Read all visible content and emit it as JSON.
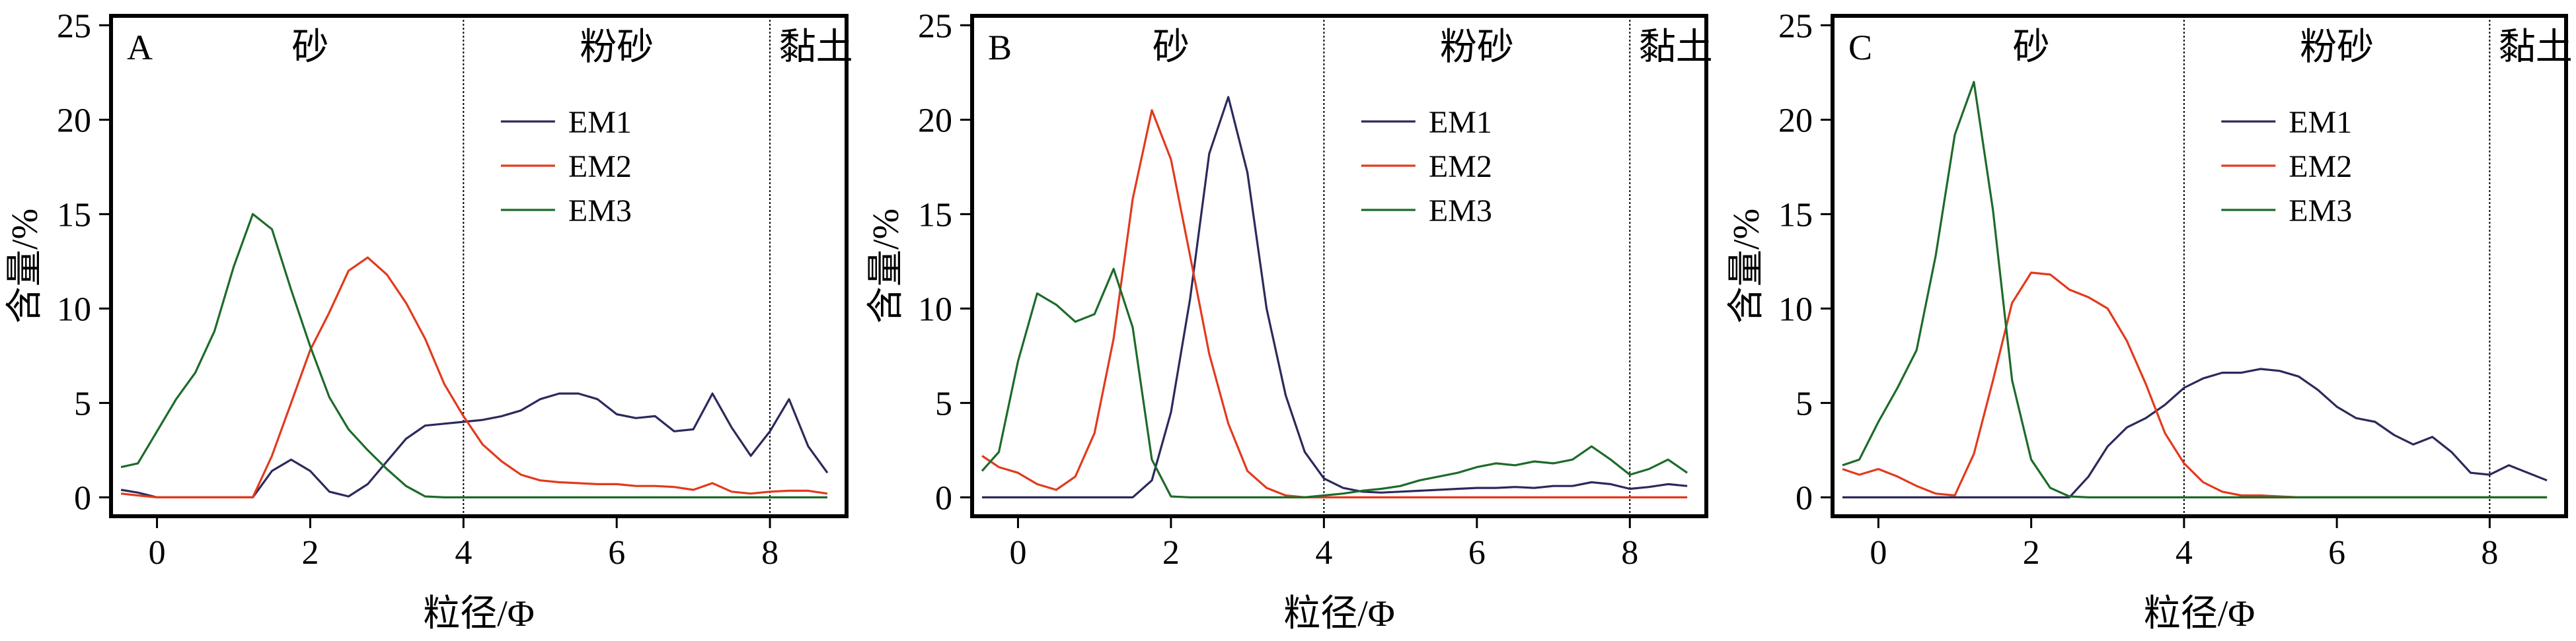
{
  "chart_data": [
    {
      "type": "line",
      "panel_label": "A",
      "xlabel": "粒径/Φ",
      "ylabel": "含量/%",
      "xlim": [
        -0.6,
        9.0
      ],
      "ylim": [
        -1,
        25.5
      ],
      "x_ticks": [
        0,
        2,
        4,
        6,
        8
      ],
      "y_ticks": [
        0,
        5,
        10,
        15,
        20,
        25
      ],
      "dividers": [
        4,
        8
      ],
      "regions": [
        {
          "label": "砂",
          "x": 2.0
        },
        {
          "label": "粉砂",
          "x": 6.0
        },
        {
          "label": "黏土",
          "x": 8.6
        }
      ],
      "legend": "upper-center-right",
      "x": [
        -0.47,
        -0.25,
        0,
        0.25,
        0.5,
        0.75,
        1,
        1.25,
        1.5,
        1.75,
        2,
        2.25,
        2.5,
        2.75,
        3,
        3.25,
        3.5,
        3.75,
        4,
        4.25,
        4.5,
        4.75,
        5,
        5.25,
        5.5,
        5.75,
        6,
        6.25,
        6.5,
        6.75,
        7,
        7.25,
        7.5,
        7.75,
        8,
        8.25,
        8.5,
        8.75
      ],
      "series": [
        {
          "name": "EM1",
          "color": "#2b2a5c",
          "values": [
            0.4,
            0.25,
            0,
            0,
            0,
            0,
            0,
            0,
            1.4,
            2.0,
            1.4,
            0.3,
            0.05,
            0.7,
            1.9,
            3.1,
            3.8,
            3.9,
            4.0,
            4.1,
            4.3,
            4.6,
            5.2,
            5.5,
            5.5,
            5.2,
            4.4,
            4.2,
            4.3,
            3.5,
            3.6,
            5.5,
            3.7,
            2.2,
            3.5,
            5.2,
            2.7,
            1.3
          ]
        },
        {
          "name": "EM2",
          "color": "#e23a1d",
          "values": [
            0.2,
            0.1,
            0,
            0,
            0,
            0,
            0,
            0,
            2.2,
            5.0,
            7.8,
            9.8,
            12.0,
            12.7,
            11.8,
            10.3,
            8.4,
            6.0,
            4.3,
            2.8,
            1.9,
            1.2,
            0.9,
            0.8,
            0.75,
            0.7,
            0.7,
            0.6,
            0.6,
            0.55,
            0.4,
            0.75,
            0.3,
            0.2,
            0.3,
            0.35,
            0.35,
            0.2
          ]
        },
        {
          "name": "EM3",
          "color": "#1d6b2a",
          "values": [
            1.6,
            1.8,
            3.5,
            5.2,
            6.6,
            8.8,
            12.2,
            15.0,
            14.2,
            11.0,
            8.0,
            5.3,
            3.6,
            2.5,
            1.5,
            0.6,
            0.05,
            0,
            0,
            0,
            0,
            0,
            0,
            0,
            0,
            0,
            0,
            0,
            0,
            0,
            0,
            0,
            0,
            0,
            0,
            0,
            0,
            0
          ]
        }
      ]
    },
    {
      "type": "line",
      "panel_label": "B",
      "xlabel": "粒径/Φ",
      "ylabel": "含量/%",
      "xlim": [
        -0.6,
        9.0
      ],
      "ylim": [
        -1,
        25.5
      ],
      "x_ticks": [
        0,
        2,
        4,
        6,
        8
      ],
      "y_ticks": [
        0,
        5,
        10,
        15,
        20,
        25
      ],
      "dividers": [
        4,
        8
      ],
      "regions": [
        {
          "label": "砂",
          "x": 2.0
        },
        {
          "label": "粉砂",
          "x": 6.0
        },
        {
          "label": "黏土",
          "x": 8.6
        }
      ],
      "legend": "upper-center-right",
      "x": [
        -0.47,
        -0.25,
        0,
        0.25,
        0.5,
        0.75,
        1,
        1.25,
        1.5,
        1.75,
        2,
        2.25,
        2.5,
        2.75,
        3,
        3.25,
        3.5,
        3.75,
        4,
        4.25,
        4.5,
        4.75,
        5,
        5.25,
        5.5,
        5.75,
        6,
        6.25,
        6.5,
        6.75,
        7,
        7.25,
        7.5,
        7.75,
        8,
        8.25,
        8.5,
        8.75
      ],
      "series": [
        {
          "name": "EM1",
          "color": "#2b2a5c",
          "values": [
            0,
            0,
            0,
            0,
            0,
            0,
            0,
            0,
            0,
            0.9,
            4.5,
            10.5,
            18.2,
            21.2,
            17.2,
            10.0,
            5.4,
            2.4,
            1.0,
            0.5,
            0.3,
            0.25,
            0.3,
            0.35,
            0.4,
            0.45,
            0.5,
            0.5,
            0.55,
            0.5,
            0.6,
            0.6,
            0.8,
            0.7,
            0.45,
            0.55,
            0.7,
            0.6
          ]
        },
        {
          "name": "EM2",
          "color": "#e23a1d",
          "values": [
            2.2,
            1.6,
            1.3,
            0.7,
            0.4,
            1.1,
            3.4,
            8.4,
            15.8,
            20.5,
            17.9,
            12.8,
            7.6,
            3.9,
            1.4,
            0.5,
            0.1,
            0,
            0,
            0,
            0,
            0,
            0,
            0,
            0,
            0,
            0,
            0,
            0,
            0,
            0,
            0,
            0,
            0,
            0,
            0,
            0,
            0
          ]
        },
        {
          "name": "EM3",
          "color": "#1d6b2a",
          "values": [
            1.4,
            2.4,
            7.2,
            10.8,
            10.2,
            9.3,
            9.7,
            12.1,
            9.0,
            2.0,
            0.05,
            0,
            0,
            0,
            0,
            0,
            0,
            0,
            0.1,
            0.2,
            0.35,
            0.45,
            0.6,
            0.9,
            1.1,
            1.3,
            1.6,
            1.8,
            1.7,
            1.9,
            1.8,
            2.0,
            2.7,
            2.0,
            1.2,
            1.5,
            2.0,
            1.3
          ]
        }
      ]
    },
    {
      "type": "line",
      "panel_label": "C",
      "xlabel": "粒径/Φ",
      "ylabel": "含量/%",
      "xlim": [
        -0.6,
        9.0
      ],
      "ylim": [
        -1,
        25.5
      ],
      "x_ticks": [
        0,
        2,
        4,
        6,
        8
      ],
      "y_ticks": [
        0,
        5,
        10,
        15,
        20,
        25
      ],
      "dividers": [
        4,
        8
      ],
      "regions": [
        {
          "label": "砂",
          "x": 2.0
        },
        {
          "label": "粉砂",
          "x": 6.0
        },
        {
          "label": "黏土",
          "x": 8.6
        }
      ],
      "legend": "upper-center-right",
      "x": [
        -0.47,
        -0.25,
        0,
        0.25,
        0.5,
        0.75,
        1,
        1.25,
        1.5,
        1.75,
        2,
        2.25,
        2.5,
        2.75,
        3,
        3.25,
        3.5,
        3.75,
        4,
        4.25,
        4.5,
        4.75,
        5,
        5.25,
        5.5,
        5.75,
        6,
        6.25,
        6.5,
        6.75,
        7,
        7.25,
        7.5,
        7.75,
        8,
        8.25,
        8.5,
        8.75
      ],
      "series": [
        {
          "name": "EM1",
          "color": "#2b2a5c",
          "values": [
            0,
            0,
            0,
            0,
            0,
            0,
            0,
            0,
            0,
            0,
            0,
            0,
            0,
            1.1,
            2.7,
            3.7,
            4.2,
            4.9,
            5.8,
            6.3,
            6.6,
            6.6,
            6.8,
            6.7,
            6.4,
            5.7,
            4.8,
            4.2,
            4.0,
            3.3,
            2.8,
            3.2,
            2.4,
            1.3,
            1.2,
            1.7,
            1.3,
            0.9
          ]
        },
        {
          "name": "EM2",
          "color": "#e23a1d",
          "values": [
            1.5,
            1.2,
            1.5,
            1.1,
            0.6,
            0.2,
            0.1,
            2.3,
            6.2,
            10.3,
            11.9,
            11.8,
            11.0,
            10.6,
            10.0,
            8.3,
            6.0,
            3.4,
            1.8,
            0.8,
            0.3,
            0.1,
            0.1,
            0.05,
            0,
            0,
            0,
            0,
            0,
            0,
            0,
            0,
            0,
            0,
            0,
            0,
            0,
            0
          ]
        },
        {
          "name": "EM3",
          "color": "#1d6b2a",
          "values": [
            1.7,
            2.0,
            4.0,
            5.8,
            7.8,
            12.8,
            19.2,
            22.0,
            15.2,
            6.2,
            2.0,
            0.5,
            0.05,
            0,
            0,
            0,
            0,
            0,
            0,
            0,
            0,
            0,
            0,
            0,
            0,
            0,
            0,
            0,
            0,
            0,
            0,
            0,
            0,
            0,
            0,
            0,
            0,
            0
          ]
        }
      ]
    }
  ]
}
